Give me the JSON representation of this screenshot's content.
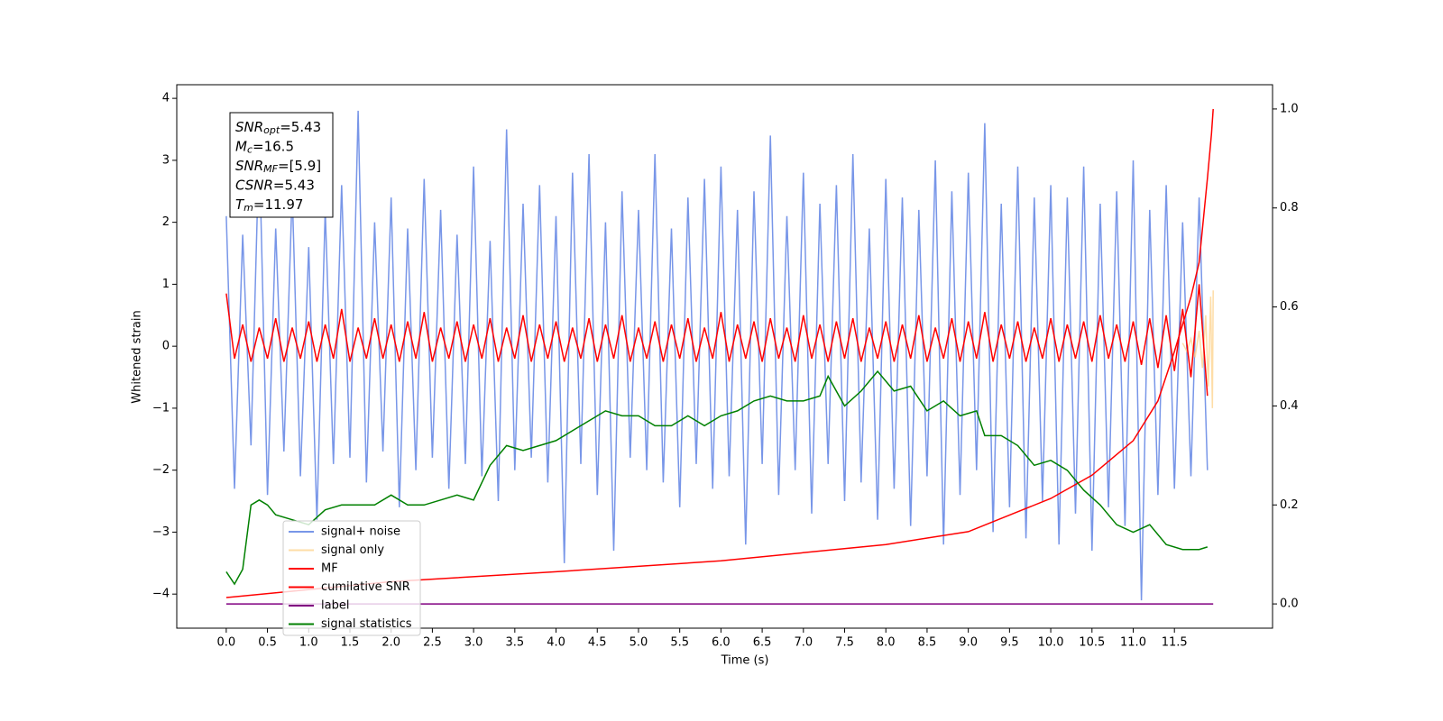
{
  "chart_data": {
    "type": "line",
    "xlabel": "Time (s)",
    "ylabel": "Whitened strain",
    "xlim": [
      -0.6,
      12.69
    ],
    "ylim": [
      -4.55,
      4.22
    ],
    "y2lim": [
      -0.049,
      1.049
    ],
    "xticks": [
      {
        "value": 0,
        "label": "0.0"
      },
      0.5,
      {
        "value": 1,
        "label": "1.0"
      },
      1.5,
      {
        "value": 2,
        "label": "2.0"
      },
      2.5,
      {
        "value": 3,
        "label": "3.0"
      },
      3.5,
      {
        "value": 4,
        "label": "4.0"
      },
      4.5,
      {
        "value": 5,
        "label": "5.0"
      },
      5.5,
      {
        "value": 6,
        "label": "6.0"
      },
      6.5,
      {
        "value": 7,
        "label": "7.0"
      },
      7.5,
      {
        "value": 8,
        "label": "8.0"
      },
      8.5,
      {
        "value": 9,
        "label": "9.0"
      },
      9.5,
      {
        "value": 10,
        "label": "10.0"
      },
      10.5,
      {
        "value": 11,
        "label": "11.0"
      },
      11.5
    ],
    "yticks": [
      {
        "value": -4,
        "label": "−4"
      },
      {
        "value": -3,
        "label": "−3"
      },
      {
        "value": -2,
        "label": "−2"
      },
      {
        "value": -1,
        "label": "−1"
      },
      0,
      1,
      2,
      3,
      4
    ],
    "y2ticks": [
      {
        "value": 0,
        "label": "0.0"
      },
      0.2,
      0.4,
      0.6,
      0.8,
      {
        "value": 1,
        "label": "1.0"
      }
    ],
    "legend": "lower left",
    "annotations": [
      {
        "symbol": "SNR",
        "subscript": "opt",
        "text": "=5.43"
      },
      {
        "symbol": "M",
        "subscript": "c",
        "text": "=16.5"
      },
      {
        "symbol": "SNR",
        "subscript": "MF",
        "text": "=[5.9]"
      },
      {
        "symbol": "CSNR",
        "subscript": "",
        "text": "=5.43"
      },
      {
        "symbol": "T",
        "subscript": "m",
        "text": "=11.97"
      }
    ],
    "x": [
      0,
      0.1,
      0.2,
      0.3,
      0.4,
      0.5,
      0.6,
      0.7,
      0.8,
      0.9,
      1,
      1.1,
      1.2,
      1.3,
      1.4,
      1.5,
      1.6,
      1.7,
      1.8,
      1.9,
      2,
      2.1,
      2.2,
      2.3,
      2.4,
      2.5,
      2.6,
      2.7,
      2.8,
      2.9,
      3,
      3.1,
      3.2,
      3.3,
      3.4,
      3.5,
      3.6,
      3.7,
      3.8,
      3.9,
      4,
      4.1,
      4.2,
      4.3,
      4.4,
      4.5,
      4.6,
      4.7,
      4.8,
      4.9,
      5,
      5.1,
      5.2,
      5.3,
      5.4,
      5.5,
      5.6,
      5.7,
      5.8,
      5.9,
      6,
      6.1,
      6.2,
      6.3,
      6.4,
      6.5,
      6.6,
      6.7,
      6.8,
      6.9,
      7,
      7.1,
      7.2,
      7.3,
      7.4,
      7.5,
      7.6,
      7.7,
      7.8,
      7.9,
      8,
      8.1,
      8.2,
      8.3,
      8.4,
      8.5,
      8.6,
      8.7,
      8.8,
      8.9,
      9,
      9.1,
      9.2,
      9.3,
      9.4,
      9.5,
      9.6,
      9.7,
      9.8,
      9.9,
      10,
      10.1,
      10.2,
      10.3,
      10.4,
      10.5,
      10.6,
      10.7,
      10.8,
      10.9,
      11,
      11.1,
      11.2,
      11.3,
      11.4,
      11.5,
      11.6,
      11.7,
      11.8,
      11.9
    ],
    "series": [
      {
        "name": "signal+ noise",
        "color": "#7896e8",
        "axis": "y",
        "values": [
          2.1,
          -2.3,
          1.8,
          -1.6,
          3.3,
          -2.4,
          1.9,
          -1.7,
          2.5,
          -2.1,
          1.6,
          -2.8,
          2.2,
          -1.9,
          2.6,
          -1.8,
          3.8,
          -2.2,
          2.0,
          -1.7,
          2.4,
          -2.6,
          1.9,
          -2.0,
          2.7,
          -1.8,
          2.2,
          -2.3,
          1.8,
          -1.9,
          2.9,
          -2.1,
          1.7,
          -2.5,
          3.5,
          -2.0,
          2.3,
          -1.8,
          2.6,
          -2.2,
          2.1,
          -3.5,
          2.8,
          -1.9,
          3.1,
          -2.4,
          2.0,
          -3.3,
          2.5,
          -1.8,
          2.2,
          -2.0,
          3.1,
          -2.2,
          1.9,
          -2.6,
          2.4,
          -1.9,
          2.7,
          -2.3,
          2.9,
          -2.1,
          2.2,
          -3.2,
          2.5,
          -1.9,
          3.4,
          -2.4,
          2.1,
          -2.0,
          2.8,
          -2.7,
          2.3,
          -1.9,
          2.6,
          -2.5,
          3.1,
          -2.2,
          1.9,
          -2.8,
          2.7,
          -2.3,
          2.4,
          -2.9,
          2.2,
          -2.1,
          3.0,
          -3.2,
          2.5,
          -2.4,
          2.8,
          -2.0,
          3.6,
          -3.0,
          2.3,
          -2.6,
          2.9,
          -3.1,
          2.4,
          -2.5,
          2.6,
          -3.2,
          2.4,
          -2.7,
          2.9,
          -3.3,
          2.3,
          -2.6,
          2.5,
          -2.9,
          3.0,
          -4.1,
          2.2,
          -2.4,
          2.6,
          -2.3,
          2.0,
          -2.1,
          2.4,
          -2.0
        ]
      },
      {
        "name": "signal only",
        "color": "#fdd28a",
        "axis": "y",
        "x": [
          11.6,
          11.65,
          11.7,
          11.75,
          11.8,
          11.84,
          11.88,
          11.91,
          11.94,
          11.96,
          11.97
        ],
        "values": [
          0.05,
          -0.08,
          0.12,
          -0.18,
          0.25,
          -0.35,
          0.5,
          -0.65,
          0.8,
          -1.0,
          0.9
        ]
      },
      {
        "name": "MF",
        "color": "#ff0000",
        "axis": "y",
        "values": [
          0.85,
          -0.2,
          0.35,
          -0.25,
          0.3,
          -0.2,
          0.45,
          -0.25,
          0.3,
          -0.2,
          0.4,
          -0.25,
          0.35,
          -0.2,
          0.6,
          -0.25,
          0.3,
          -0.2,
          0.45,
          -0.2,
          0.35,
          -0.25,
          0.4,
          -0.2,
          0.55,
          -0.25,
          0.3,
          -0.2,
          0.4,
          -0.25,
          0.35,
          -0.2,
          0.45,
          -0.25,
          0.3,
          -0.2,
          0.5,
          -0.25,
          0.35,
          -0.2,
          0.4,
          -0.25,
          0.3,
          -0.2,
          0.45,
          -0.25,
          0.35,
          -0.2,
          0.5,
          -0.25,
          0.3,
          -0.2,
          0.4,
          -0.25,
          0.35,
          -0.2,
          0.45,
          -0.25,
          0.3,
          -0.2,
          0.55,
          -0.25,
          0.35,
          -0.2,
          0.4,
          -0.25,
          0.45,
          -0.2,
          0.3,
          -0.25,
          0.5,
          -0.2,
          0.35,
          -0.25,
          0.4,
          -0.2,
          0.45,
          -0.25,
          0.3,
          -0.2,
          0.4,
          -0.25,
          0.35,
          -0.2,
          0.5,
          -0.25,
          0.3,
          -0.2,
          0.45,
          -0.25,
          0.4,
          -0.2,
          0.55,
          -0.25,
          0.35,
          -0.2,
          0.4,
          -0.25,
          0.3,
          -0.2,
          0.45,
          -0.25,
          0.35,
          -0.2,
          0.4,
          -0.25,
          0.5,
          -0.2,
          0.35,
          -0.25,
          0.4,
          -0.3,
          0.45,
          -0.35,
          0.5,
          -0.4,
          0.6,
          -0.5,
          1.0,
          -0.8
        ]
      },
      {
        "name": "cumilative SNR",
        "color": "#ff0000",
        "axis": "y2",
        "x": [
          0,
          2,
          4,
          6,
          8,
          9,
          10,
          10.5,
          11,
          11.3,
          11.5,
          11.7,
          11.8,
          11.9,
          11.95,
          11.97
        ],
        "values": [
          0.013,
          0.045,
          0.065,
          0.087,
          0.12,
          0.146,
          0.213,
          0.26,
          0.33,
          0.41,
          0.51,
          0.62,
          0.69,
          0.86,
          0.95,
          1.0
        ]
      },
      {
        "name": "label",
        "color": "#800080",
        "axis": "y2",
        "x": [
          0,
          11.97
        ],
        "values": [
          0,
          0
        ]
      },
      {
        "name": "signal statistics",
        "color": "#008000",
        "axis": "y2",
        "x": [
          0,
          0.1,
          0.2,
          0.3,
          0.4,
          0.5,
          0.6,
          0.8,
          1.0,
          1.2,
          1.4,
          1.6,
          1.8,
          2.0,
          2.2,
          2.4,
          2.6,
          2.8,
          3.0,
          3.2,
          3.4,
          3.6,
          3.8,
          4.0,
          4.2,
          4.4,
          4.6,
          4.8,
          5.0,
          5.2,
          5.4,
          5.6,
          5.8,
          6.0,
          6.2,
          6.4,
          6.6,
          6.8,
          7.0,
          7.2,
          7.3,
          7.5,
          7.7,
          7.9,
          8.1,
          8.3,
          8.5,
          8.7,
          8.9,
          9.1,
          9.2,
          9.4,
          9.6,
          9.8,
          10.0,
          10.2,
          10.4,
          10.6,
          10.8,
          11.0,
          11.2,
          11.4,
          11.6,
          11.8,
          11.9
        ],
        "values": [
          0.065,
          0.04,
          0.07,
          0.2,
          0.21,
          0.2,
          0.18,
          0.17,
          0.16,
          0.19,
          0.2,
          0.2,
          0.2,
          0.22,
          0.2,
          0.2,
          0.21,
          0.22,
          0.21,
          0.28,
          0.32,
          0.31,
          0.32,
          0.33,
          0.35,
          0.37,
          0.39,
          0.38,
          0.38,
          0.36,
          0.36,
          0.38,
          0.36,
          0.38,
          0.39,
          0.41,
          0.42,
          0.41,
          0.41,
          0.42,
          0.46,
          0.4,
          0.43,
          0.47,
          0.43,
          0.44,
          0.39,
          0.41,
          0.38,
          0.39,
          0.34,
          0.34,
          0.32,
          0.28,
          0.29,
          0.27,
          0.23,
          0.2,
          0.16,
          0.145,
          0.16,
          0.12,
          0.11,
          0.11,
          0.115
        ]
      }
    ]
  }
}
